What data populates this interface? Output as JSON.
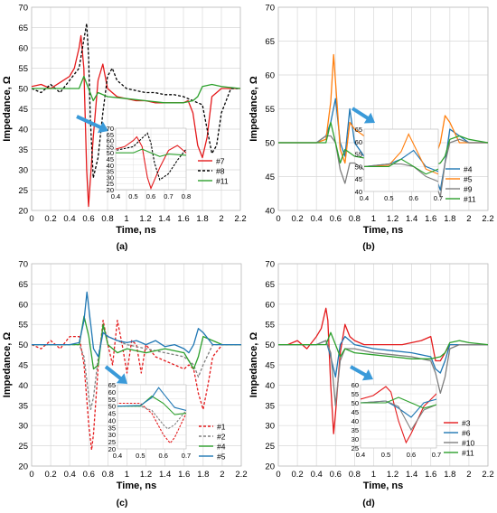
{
  "chart_data": [
    {
      "type": "line",
      "panel_label": "(a)",
      "xlabel": "Time, ns",
      "ylabel": "Impedance, Ω",
      "xlim": [
        0,
        2.2
      ],
      "ylim": [
        20,
        70
      ],
      "x_ticks": [
        "0",
        "0.2",
        "0.4",
        "0.6",
        "0.8",
        "1",
        "1.2",
        "1.4",
        "1.6",
        "1.8",
        "2",
        "2.2"
      ],
      "y_ticks": [
        "20",
        "25",
        "30",
        "35",
        "40",
        "45",
        "50",
        "55",
        "60",
        "65",
        "70"
      ],
      "grid": true,
      "legend": "right, inside plot",
      "series": [
        {
          "name": "#7",
          "color": "#e41a1c",
          "dash": "solid",
          "x": [
            0,
            0.1,
            0.2,
            0.3,
            0.4,
            0.45,
            0.5,
            0.52,
            0.55,
            0.58,
            0.6,
            0.65,
            0.7,
            0.75,
            0.8,
            0.9,
            1.0,
            1.1,
            1.2,
            1.3,
            1.4,
            1.5,
            1.6,
            1.65,
            1.7,
            1.75,
            1.8,
            1.85,
            1.9,
            2.0,
            2.1,
            2.2
          ],
          "y": [
            50.5,
            51,
            50,
            51.5,
            53,
            55,
            60,
            63,
            55,
            30,
            21,
            38,
            52,
            56,
            50,
            48,
            47.5,
            47,
            47,
            46.5,
            46.5,
            46.5,
            46.5,
            47,
            44,
            36,
            33,
            38,
            48,
            50,
            50,
            50
          ]
        },
        {
          "name": "#8",
          "color": "#000000",
          "dash": "dashed",
          "x": [
            0,
            0.1,
            0.2,
            0.3,
            0.4,
            0.5,
            0.55,
            0.58,
            0.6,
            0.62,
            0.65,
            0.7,
            0.75,
            0.8,
            0.85,
            0.9,
            1.0,
            1.1,
            1.2,
            1.3,
            1.4,
            1.5,
            1.6,
            1.7,
            1.8,
            1.85,
            1.9,
            1.95,
            2.0,
            2.1,
            2.2
          ],
          "y": [
            50,
            49,
            51,
            49,
            52,
            55,
            62,
            66,
            58,
            42,
            28,
            33,
            44,
            53,
            55,
            52,
            50,
            49.5,
            49,
            49,
            48.5,
            48.5,
            48,
            47,
            46,
            40,
            34,
            36,
            44,
            50,
            50
          ]
        },
        {
          "name": "#11",
          "color": "#2ca02c",
          "dash": "solid",
          "x": [
            0,
            0.2,
            0.4,
            0.5,
            0.55,
            0.6,
            0.65,
            0.7,
            0.8,
            1.0,
            1.2,
            1.4,
            1.6,
            1.7,
            1.75,
            1.8,
            1.9,
            2.0,
            2.2
          ],
          "y": [
            50,
            50,
            50,
            50,
            53,
            50,
            47,
            49,
            48,
            47.5,
            47,
            46.5,
            46.5,
            47,
            48,
            50.5,
            51,
            50.5,
            50
          ]
        }
      ],
      "inset": {
        "x_ticks": [
          "0.4",
          "0.5",
          "0.6",
          "0.7",
          "0.8"
        ],
        "y_ticks": [
          "20",
          "25",
          "30",
          "35",
          "40",
          "45",
          "50",
          "55",
          "60",
          "65",
          "70"
        ],
        "xlim": [
          0.4,
          0.8
        ],
        "ylim": [
          20,
          70
        ]
      }
    },
    {
      "type": "line",
      "panel_label": "(b)",
      "xlabel": "Time, ns",
      "ylabel": "Impedance, Ω",
      "xlim": [
        0,
        2.2
      ],
      "ylim": [
        40,
        70
      ],
      "x_ticks": [
        "0",
        "0.2",
        "0.4",
        "0.6",
        "0.8",
        "1",
        "1.2",
        "1.4",
        "1.6",
        "1.8",
        "2",
        "2.2"
      ],
      "y_ticks": [
        "40",
        "45",
        "50",
        "55",
        "60",
        "65",
        "70"
      ],
      "grid": true,
      "legend": "right, inside plot",
      "series": [
        {
          "name": "#4",
          "color": "#1f77b4",
          "dash": "solid",
          "x": [
            0,
            0.2,
            0.4,
            0.5,
            0.55,
            0.6,
            0.65,
            0.7,
            0.75,
            0.8,
            0.9,
            1.0,
            1.1,
            1.2,
            1.3,
            1.4,
            1.5,
            1.6,
            1.65,
            1.7,
            1.75,
            1.8,
            1.9,
            2.0,
            2.2
          ],
          "y": [
            50,
            50,
            50,
            51,
            53,
            56.5,
            50,
            48,
            55,
            50,
            48,
            49,
            50,
            48,
            49,
            49,
            49,
            48,
            45,
            43,
            47,
            52,
            51,
            50,
            50
          ]
        },
        {
          "name": "#5",
          "color": "#ff7f0e",
          "dash": "solid",
          "x": [
            0,
            0.2,
            0.4,
            0.5,
            0.55,
            0.58,
            0.62,
            0.65,
            0.7,
            0.75,
            0.8,
            0.9,
            1.0,
            1.1,
            1.2,
            1.3,
            1.4,
            1.5,
            1.6,
            1.65,
            1.7,
            1.75,
            1.8,
            1.9,
            2.0,
            2.2
          ],
          "y": [
            50,
            50,
            50,
            50.5,
            56,
            63,
            55,
            49,
            47,
            53,
            52,
            51,
            50.5,
            51,
            50,
            51,
            49.5,
            50,
            49,
            48,
            50,
            54,
            53,
            50,
            50,
            50
          ]
        },
        {
          "name": "#9",
          "color": "#7f7f7f",
          "dash": "solid",
          "x": [
            0,
            0.2,
            0.4,
            0.5,
            0.55,
            0.6,
            0.65,
            0.7,
            0.75,
            0.8,
            0.9,
            1.0,
            1.2,
            1.4,
            1.6,
            1.65,
            1.7,
            1.75,
            1.8,
            1.9,
            2.0,
            2.2
          ],
          "y": [
            50,
            50,
            50,
            51,
            51,
            50,
            46,
            44,
            47,
            47,
            46,
            46.5,
            46.5,
            46.5,
            46,
            44,
            42,
            47,
            50,
            50.5,
            50,
            50
          ]
        },
        {
          "name": "#11",
          "color": "#2ca02c",
          "dash": "solid",
          "x": [
            0,
            0.2,
            0.4,
            0.5,
            0.55,
            0.6,
            0.65,
            0.7,
            0.8,
            1.0,
            1.2,
            1.4,
            1.6,
            1.7,
            1.75,
            1.8,
            1.9,
            2.0,
            2.2
          ],
          "y": [
            50,
            50,
            50,
            50,
            53,
            50,
            47,
            49,
            48,
            47.5,
            47,
            46.5,
            46.5,
            47,
            48,
            50.5,
            51,
            50.5,
            50
          ]
        }
      ],
      "inset": {
        "x_ticks": [
          "0.4",
          "0.5",
          "0.6",
          "0.7"
        ],
        "y_ticks": [
          "40",
          "45",
          "50",
          "55",
          "60",
          "65"
        ],
        "xlim": [
          0.4,
          0.7
        ],
        "ylim": [
          40,
          65
        ]
      }
    },
    {
      "type": "line",
      "panel_label": "(c)",
      "xlabel": "Time, ns",
      "ylabel": "Impedance, Ω",
      "xlim": [
        0,
        2.2
      ],
      "ylim": [
        20,
        70
      ],
      "x_ticks": [
        "0",
        "0.2",
        "0.4",
        "0.6",
        "0.8",
        "1",
        "1.2",
        "1.4",
        "1.6",
        "1.8",
        "2",
        "2.2"
      ],
      "y_ticks": [
        "20",
        "25",
        "30",
        "35",
        "40",
        "45",
        "50",
        "55",
        "60",
        "65",
        "70"
      ],
      "grid": true,
      "legend": "right, inside plot",
      "series": [
        {
          "name": "#1",
          "color": "#e41a1c",
          "dash": "dashed",
          "x": [
            0,
            0.1,
            0.2,
            0.3,
            0.4,
            0.5,
            0.55,
            0.6,
            0.63,
            0.65,
            0.7,
            0.75,
            0.8,
            0.85,
            0.9,
            0.95,
            1.0,
            1.05,
            1.1,
            1.15,
            1.2,
            1.3,
            1.4,
            1.5,
            1.6,
            1.65,
            1.7,
            1.75,
            1.8,
            1.85,
            1.9,
            2.0,
            2.1,
            2.2
          ],
          "y": [
            50,
            49,
            51,
            49,
            52,
            52,
            45,
            30,
            24,
            28,
            45,
            56,
            50,
            45,
            56,
            50,
            43,
            51,
            50,
            43,
            50,
            47,
            46,
            45,
            44,
            45,
            44,
            38,
            34,
            40,
            47,
            50,
            50,
            50
          ]
        },
        {
          "name": "#2",
          "color": "#7f7f7f",
          "dash": "dashed",
          "x": [
            0,
            0.2,
            0.4,
            0.5,
            0.55,
            0.6,
            0.62,
            0.65,
            0.7,
            0.75,
            0.8,
            0.9,
            1.0,
            1.2,
            1.4,
            1.6,
            1.7,
            1.75,
            1.8,
            1.9,
            2.0,
            2.2
          ],
          "y": [
            50,
            50,
            50,
            50,
            47,
            37,
            34,
            37,
            47,
            54,
            52,
            51,
            50,
            49,
            48,
            47,
            45,
            42,
            45,
            50,
            50,
            50
          ]
        },
        {
          "name": "#4",
          "color": "#2ca02c",
          "dash": "solid",
          "x": [
            0,
            0.2,
            0.4,
            0.5,
            0.55,
            0.6,
            0.65,
            0.7,
            0.75,
            0.8,
            0.9,
            1.0,
            1.2,
            1.4,
            1.6,
            1.7,
            1.75,
            1.8,
            1.9,
            2.0,
            2.2
          ],
          "y": [
            50,
            50,
            50,
            50,
            57,
            52,
            44,
            45,
            55,
            50,
            48,
            49,
            48,
            49,
            48,
            44,
            47,
            52,
            51,
            50,
            50
          ]
        },
        {
          "name": "#5",
          "color": "#1f77b4",
          "dash": "solid",
          "x": [
            0,
            0.2,
            0.4,
            0.5,
            0.55,
            0.58,
            0.62,
            0.65,
            0.7,
            0.75,
            0.8,
            0.9,
            1.0,
            1.1,
            1.2,
            1.3,
            1.4,
            1.5,
            1.6,
            1.65,
            1.7,
            1.75,
            1.8,
            1.9,
            2.0,
            2.2
          ],
          "y": [
            50,
            50,
            50,
            50.5,
            56,
            63,
            55,
            49,
            47,
            53,
            52,
            51,
            50.5,
            51,
            50,
            51,
            49.5,
            50,
            49,
            48,
            50,
            54,
            53,
            50,
            50,
            50
          ]
        }
      ],
      "inset": {
        "x_ticks": [
          "0.4",
          "0.5",
          "0.6",
          "0.7"
        ],
        "y_ticks": [
          "20",
          "25",
          "30",
          "35",
          "40",
          "45",
          "50",
          "55",
          "60",
          "65"
        ],
        "xlim": [
          0.4,
          0.7
        ],
        "ylim": [
          20,
          65
        ]
      }
    },
    {
      "type": "line",
      "panel_label": "(d)",
      "xlabel": "Time, ns",
      "ylabel": "Impedance, Ω",
      "xlim": [
        0,
        2.2
      ],
      "ylim": [
        20,
        70
      ],
      "x_ticks": [
        "0",
        "0.2",
        "0.4",
        "0.6",
        "0.8",
        "1",
        "1.2",
        "1.4",
        "1.6",
        "1.8",
        "2",
        "2.2"
      ],
      "y_ticks": [
        "20",
        "25",
        "30",
        "35",
        "40",
        "45",
        "50",
        "55",
        "60",
        "65",
        "70"
      ],
      "grid": true,
      "legend": "right, inside plot",
      "series": [
        {
          "name": "#3",
          "color": "#e41a1c",
          "dash": "solid",
          "x": [
            0,
            0.1,
            0.2,
            0.3,
            0.4,
            0.45,
            0.5,
            0.52,
            0.55,
            0.58,
            0.6,
            0.65,
            0.7,
            0.75,
            0.8,
            0.9,
            1.0,
            1.1,
            1.2,
            1.3,
            1.4,
            1.5,
            1.6,
            1.65,
            1.7,
            1.75,
            1.8,
            1.9,
            2.0,
            2.2
          ],
          "y": [
            50,
            50,
            51,
            49,
            52,
            54,
            59,
            56,
            40,
            28,
            33,
            48,
            55,
            52,
            51,
            50,
            50,
            50,
            50,
            50,
            50.5,
            51,
            52,
            46,
            46,
            48,
            50,
            50,
            50,
            50
          ]
        },
        {
          "name": "#6",
          "color": "#1f77b4",
          "dash": "solid",
          "x": [
            0,
            0.2,
            0.4,
            0.5,
            0.55,
            0.6,
            0.65,
            0.7,
            0.8,
            1.0,
            1.2,
            1.4,
            1.6,
            1.65,
            1.7,
            1.75,
            1.8,
            1.9,
            2.0,
            2.2
          ],
          "y": [
            50,
            50,
            50,
            51,
            47,
            42,
            50,
            52,
            50,
            49,
            48.5,
            48,
            47,
            44,
            43,
            46,
            50,
            50,
            50,
            50
          ]
        },
        {
          "name": "#10",
          "color": "#7f7f7f",
          "dash": "solid",
          "x": [
            0,
            0.2,
            0.4,
            0.5,
            0.55,
            0.6,
            0.65,
            0.7,
            0.8,
            1.0,
            1.2,
            1.4,
            1.6,
            1.65,
            1.7,
            1.75,
            1.8,
            1.9,
            2.0,
            2.2
          ],
          "y": [
            50,
            50,
            50,
            51,
            48,
            35,
            46,
            49,
            49,
            48,
            47.5,
            47,
            46,
            43,
            38,
            42,
            49,
            50,
            50,
            50
          ]
        },
        {
          "name": "#11",
          "color": "#2ca02c",
          "dash": "solid",
          "x": [
            0,
            0.2,
            0.4,
            0.5,
            0.55,
            0.6,
            0.65,
            0.7,
            0.8,
            1.0,
            1.2,
            1.4,
            1.6,
            1.7,
            1.75,
            1.8,
            1.9,
            2.0,
            2.2
          ],
          "y": [
            50,
            50,
            50,
            50,
            53,
            50,
            47,
            49,
            48,
            47.5,
            47,
            46.5,
            46.5,
            47,
            48,
            50.5,
            51,
            50.5,
            50
          ]
        }
      ],
      "inset": {
        "x_ticks": [
          "0.4",
          "0.5",
          "0.6",
          "0.7"
        ],
        "y_ticks": [
          "25",
          "30",
          "35",
          "40",
          "45",
          "50",
          "55",
          "60"
        ],
        "xlim": [
          0.4,
          0.7
        ],
        "ylim": [
          25,
          60
        ]
      }
    }
  ]
}
